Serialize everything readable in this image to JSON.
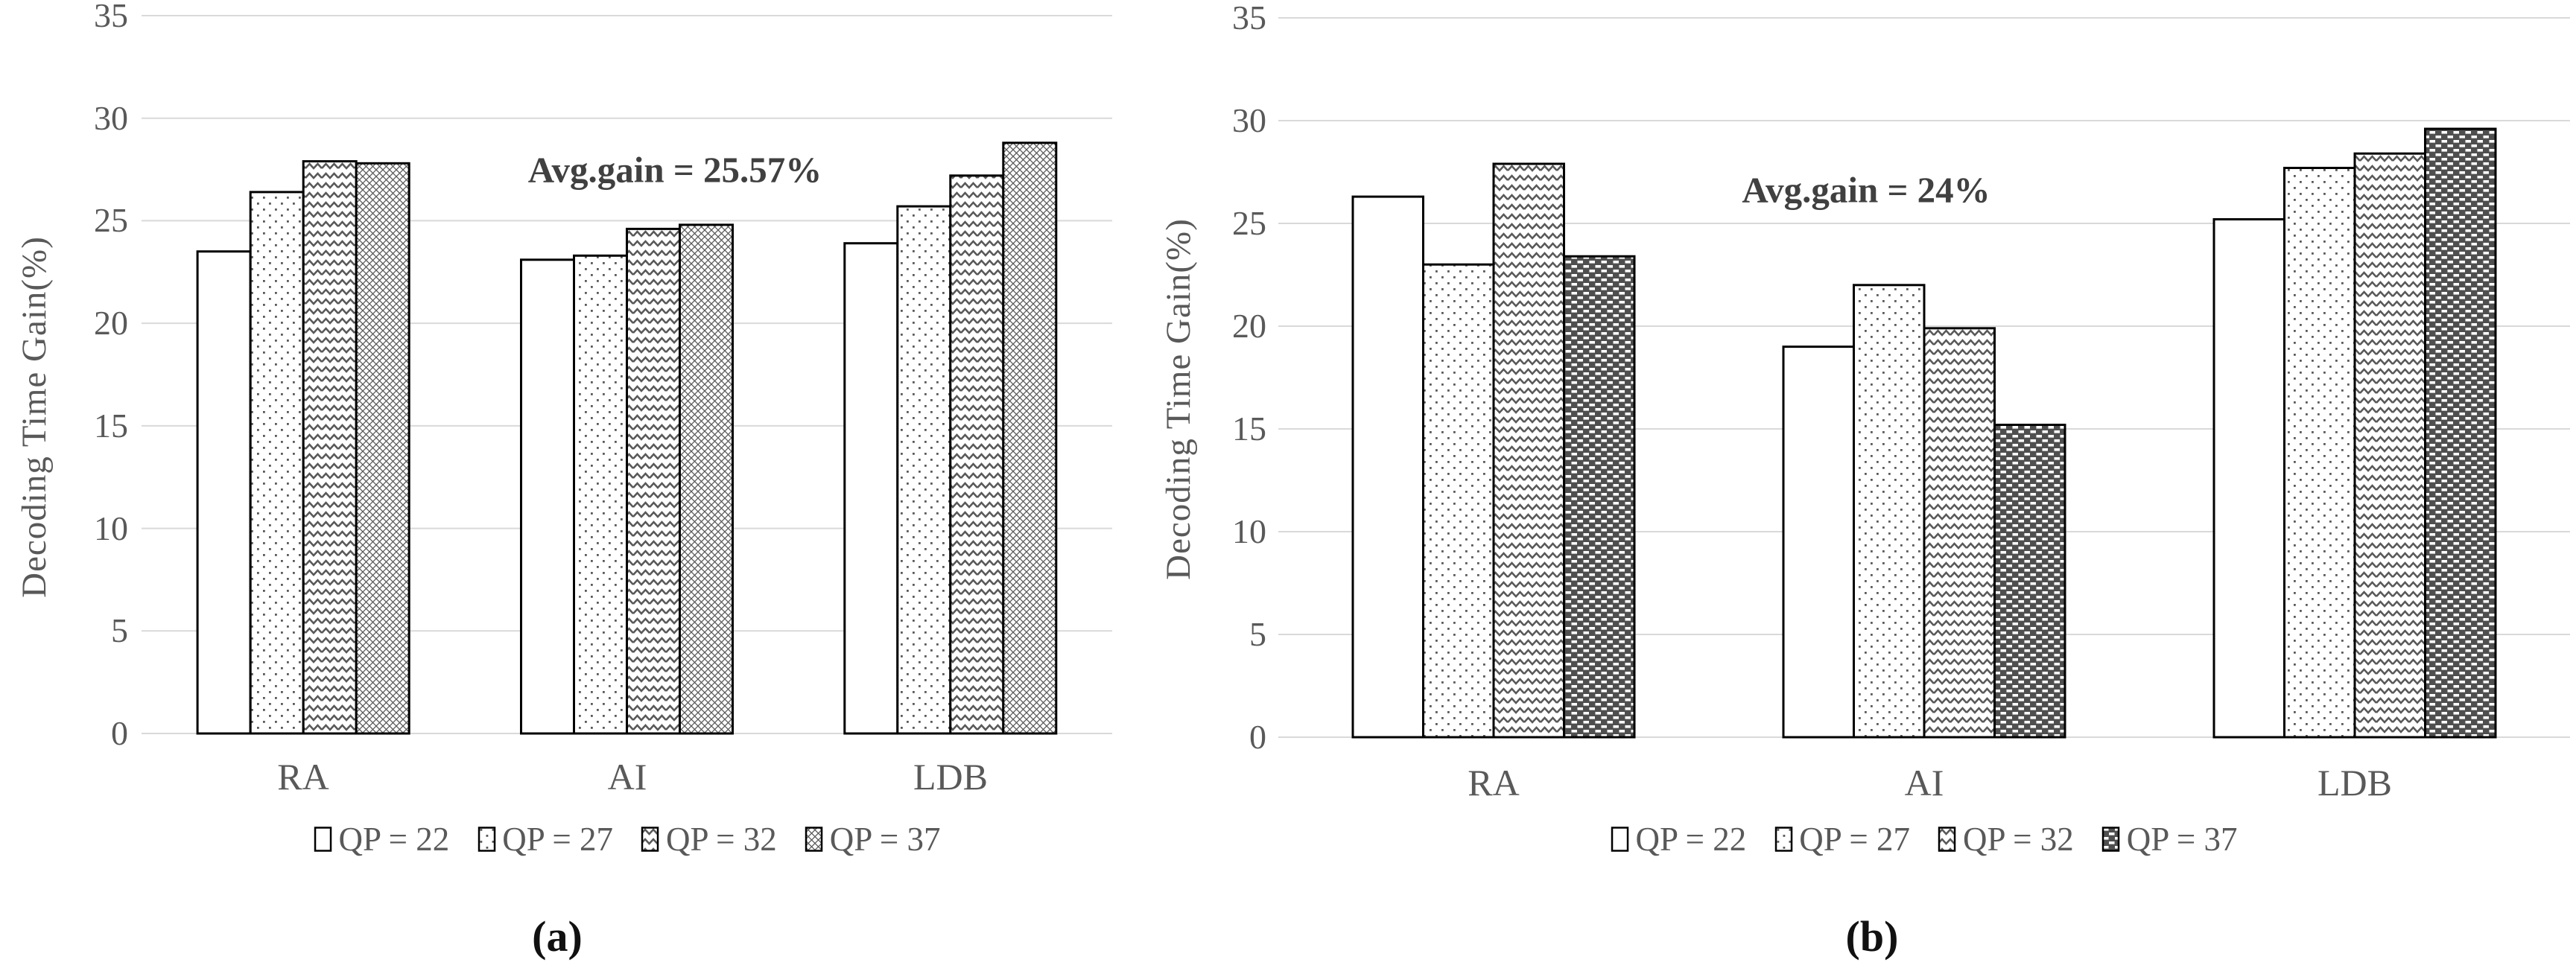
{
  "colors": {
    "background": "#ffffff",
    "text": "#595959",
    "annotation_text": "#404040",
    "caption_text": "#111111",
    "grid": "#d9d9d9",
    "bar_outline": "#000000",
    "pattern_ink": "#595959",
    "dark_series_fill": "#4f4f4f"
  },
  "chart_data": [
    {
      "type": "bar",
      "caption": "(a)",
      "annotation": "Avg.gain = 25.57%",
      "ylabel": "Decoding Time Gain(%)",
      "xlabel": "",
      "ylim": [
        0,
        35
      ],
      "yticks": [
        0,
        5,
        10,
        15,
        20,
        25,
        30,
        35
      ],
      "grid": true,
      "legend_position": "bottom",
      "categories": [
        "RA",
        "AI",
        "LDB"
      ],
      "series": [
        {
          "name": "QP = 22",
          "pattern": "plain",
          "values": [
            23.5,
            23.1,
            23.9
          ]
        },
        {
          "name": "QP = 27",
          "pattern": "dots",
          "values": [
            26.4,
            23.3,
            25.7
          ]
        },
        {
          "name": "QP = 32",
          "pattern": "chevron",
          "values": [
            27.9,
            24.6,
            27.2
          ]
        },
        {
          "name": "QP = 37",
          "pattern": "diamond",
          "values": [
            27.8,
            24.8,
            28.8
          ]
        }
      ]
    },
    {
      "type": "bar",
      "caption": "(b)",
      "annotation": "Avg.gain = 24%",
      "ylabel": "Decoding Time Gain(%)",
      "xlabel": "",
      "ylim": [
        0,
        35
      ],
      "yticks": [
        0,
        5,
        10,
        15,
        20,
        25,
        30,
        35
      ],
      "grid": true,
      "legend_position": "bottom",
      "categories": [
        "RA",
        "AI",
        "LDB"
      ],
      "series": [
        {
          "name": "QP = 22",
          "pattern": "plain",
          "values": [
            26.3,
            19.0,
            25.2
          ]
        },
        {
          "name": "QP = 27",
          "pattern": "dots",
          "values": [
            23.0,
            22.0,
            27.7
          ]
        },
        {
          "name": "QP = 32",
          "pattern": "chevron",
          "values": [
            27.9,
            19.9,
            28.4
          ]
        },
        {
          "name": "QP = 37",
          "pattern": "darkbrick",
          "values": [
            23.4,
            15.2,
            29.6
          ]
        }
      ]
    }
  ]
}
